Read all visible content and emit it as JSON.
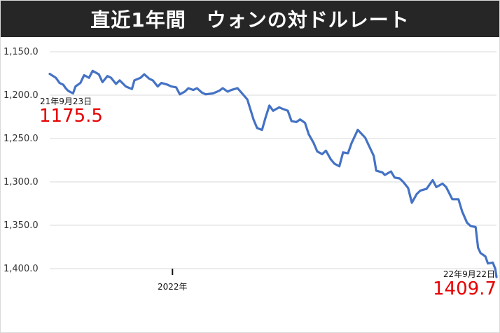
{
  "chart_data": {
    "type": "line",
    "title": "直近1年間　ウォンの対ドルレート",
    "xlabel": "",
    "ylabel": "",
    "y_inverted": true,
    "ylim": [
      1150.0,
      1400.0
    ],
    "yticks": [
      "1,150.0",
      "1,200.0",
      "1,250.0",
      "1,300.0",
      "1,350.0",
      "1,400.0"
    ],
    "ytick_values": [
      1150,
      1200,
      1250,
      1300,
      1350,
      1400
    ],
    "grid": true,
    "x_start": "2021-09-23",
    "x_end": "2022-09-22",
    "x_tick_label": "2022年",
    "x_tick_date": "2022-01-01",
    "line_color": "#4472c4",
    "annotation_color": "#e60000",
    "start_annotation": {
      "date_label": "21年9月23日",
      "value_label": "1175.5",
      "value": 1175.5
    },
    "end_annotation": {
      "date_label": "22年9月22日",
      "value_label": "1409.7",
      "value": 1409.7
    },
    "series": [
      {
        "points": [
          [
            "2021-09-23",
            1175.5
          ],
          [
            "2021-09-28",
            1180
          ],
          [
            "2021-10-01",
            1186
          ],
          [
            "2021-10-04",
            1188
          ],
          [
            "2021-10-06",
            1192
          ],
          [
            "2021-10-08",
            1195
          ],
          [
            "2021-10-12",
            1198
          ],
          [
            "2021-10-14",
            1190
          ],
          [
            "2021-10-18",
            1186
          ],
          [
            "2021-10-21",
            1177
          ],
          [
            "2021-10-25",
            1180
          ],
          [
            "2021-10-28",
            1172
          ],
          [
            "2021-11-02",
            1176
          ],
          [
            "2021-11-05",
            1185
          ],
          [
            "2021-11-09",
            1178
          ],
          [
            "2021-11-12",
            1180
          ],
          [
            "2021-11-16",
            1187
          ],
          [
            "2021-11-19",
            1183
          ],
          [
            "2021-11-24",
            1190
          ],
          [
            "2021-11-29",
            1193
          ],
          [
            "2021-12-01",
            1183
          ],
          [
            "2021-12-06",
            1180
          ],
          [
            "2021-12-09",
            1176
          ],
          [
            "2021-12-13",
            1181
          ],
          [
            "2021-12-16",
            1183
          ],
          [
            "2021-12-20",
            1190
          ],
          [
            "2021-12-23",
            1186
          ],
          [
            "2021-12-28",
            1188
          ],
          [
            "2021-12-31",
            1190
          ],
          [
            "2022-01-04",
            1191
          ],
          [
            "2022-01-07",
            1199
          ],
          [
            "2022-01-11",
            1196
          ],
          [
            "2022-01-14",
            1192
          ],
          [
            "2022-01-18",
            1194
          ],
          [
            "2022-01-21",
            1192
          ],
          [
            "2022-01-25",
            1197
          ],
          [
            "2022-01-28",
            1199
          ],
          [
            "2022-02-03",
            1198
          ],
          [
            "2022-02-08",
            1195
          ],
          [
            "2022-02-11",
            1192
          ],
          [
            "2022-02-15",
            1196
          ],
          [
            "2022-02-18",
            1194
          ],
          [
            "2022-02-23",
            1192
          ],
          [
            "2022-02-28",
            1200
          ],
          [
            "2022-03-03",
            1205
          ],
          [
            "2022-03-08",
            1228
          ],
          [
            "2022-03-11",
            1238
          ],
          [
            "2022-03-15",
            1240
          ],
          [
            "2022-03-18",
            1225
          ],
          [
            "2022-03-21",
            1212
          ],
          [
            "2022-03-24",
            1218
          ],
          [
            "2022-03-29",
            1214
          ],
          [
            "2022-04-01",
            1216
          ],
          [
            "2022-04-05",
            1218
          ],
          [
            "2022-04-08",
            1230
          ],
          [
            "2022-04-12",
            1231
          ],
          [
            "2022-04-15",
            1228
          ],
          [
            "2022-04-19",
            1232
          ],
          [
            "2022-04-22",
            1245
          ],
          [
            "2022-04-26",
            1255
          ],
          [
            "2022-04-29",
            1265
          ],
          [
            "2022-05-03",
            1268
          ],
          [
            "2022-05-06",
            1264
          ],
          [
            "2022-05-10",
            1274
          ],
          [
            "2022-05-13",
            1279
          ],
          [
            "2022-05-17",
            1282
          ],
          [
            "2022-05-20",
            1266
          ],
          [
            "2022-05-24",
            1267
          ],
          [
            "2022-05-27",
            1255
          ],
          [
            "2022-06-01",
            1240
          ],
          [
            "2022-06-03",
            1243
          ],
          [
            "2022-06-07",
            1249
          ],
          [
            "2022-06-10",
            1258
          ],
          [
            "2022-06-14",
            1270
          ],
          [
            "2022-06-16",
            1287
          ],
          [
            "2022-06-21",
            1289
          ],
          [
            "2022-06-23",
            1292
          ],
          [
            "2022-06-28",
            1288
          ],
          [
            "2022-07-01",
            1295
          ],
          [
            "2022-07-05",
            1296
          ],
          [
            "2022-07-08",
            1300
          ],
          [
            "2022-07-12",
            1307
          ],
          [
            "2022-07-15",
            1324
          ],
          [
            "2022-07-19",
            1314
          ],
          [
            "2022-07-22",
            1310
          ],
          [
            "2022-07-27",
            1308
          ],
          [
            "2022-08-01",
            1298
          ],
          [
            "2022-08-04",
            1306
          ],
          [
            "2022-08-09",
            1302
          ],
          [
            "2022-08-12",
            1306
          ],
          [
            "2022-08-17",
            1320
          ],
          [
            "2022-08-22",
            1320
          ],
          [
            "2022-08-25",
            1334
          ],
          [
            "2022-08-29",
            1347
          ],
          [
            "2022-09-01",
            1351
          ],
          [
            "2022-09-05",
            1352
          ],
          [
            "2022-09-07",
            1376
          ],
          [
            "2022-09-09",
            1382
          ],
          [
            "2022-09-13",
            1386
          ],
          [
            "2022-09-15",
            1394
          ],
          [
            "2022-09-19",
            1393
          ],
          [
            "2022-09-21",
            1400
          ],
          [
            "2022-09-22",
            1409.7
          ]
        ]
      }
    ]
  }
}
